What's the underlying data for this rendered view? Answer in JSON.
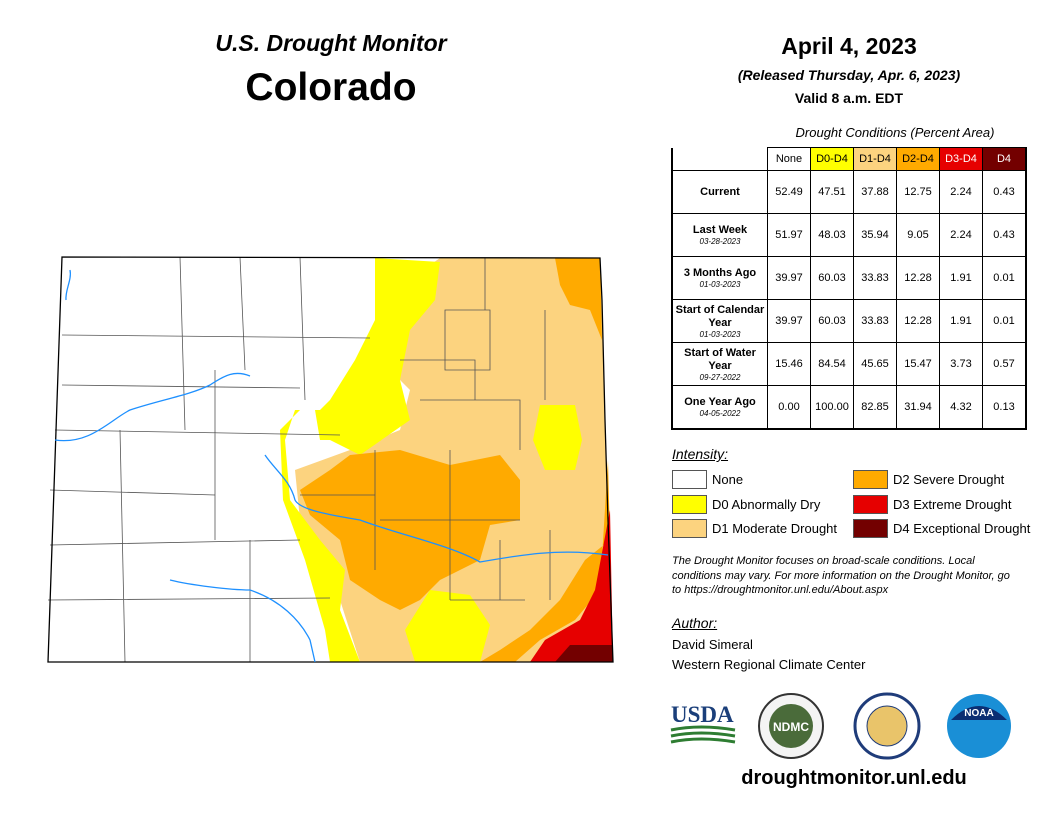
{
  "header": {
    "title": "U.S. Drought Monitor",
    "state": "Colorado",
    "date": "April 4, 2023",
    "released": "(Released Thursday, Apr. 6, 2023)",
    "valid": "Valid 8 a.m. EDT"
  },
  "table": {
    "caption": "Drought Conditions (Percent Area)",
    "columns": [
      {
        "label": "None",
        "color": "#ffffff",
        "text_color": "#000000"
      },
      {
        "label": "D0-D4",
        "color": "#ffff00",
        "text_color": "#000000"
      },
      {
        "label": "D1-D4",
        "color": "#fcd37f",
        "text_color": "#000000"
      },
      {
        "label": "D2-D4",
        "color": "#ffaa00",
        "text_color": "#000000"
      },
      {
        "label": "D3-D4",
        "color": "#e60000",
        "text_color": "#ffffff"
      },
      {
        "label": "D4",
        "color": "#730000",
        "text_color": "#ffffff"
      }
    ],
    "rows": [
      {
        "label": "Current",
        "values": [
          "52.49",
          "47.51",
          "37.88",
          "12.75",
          "2.24",
          "0.43"
        ]
      },
      {
        "label": "Last Week",
        "date": "03-28-2023",
        "values": [
          "51.97",
          "48.03",
          "35.94",
          "9.05",
          "2.24",
          "0.43"
        ]
      },
      {
        "label": "3 Months Ago",
        "date": "01-03-2023",
        "values": [
          "39.97",
          "60.03",
          "33.83",
          "12.28",
          "1.91",
          "0.01"
        ]
      },
      {
        "label": "Start of Calendar Year",
        "date": "01-03-2023",
        "values": [
          "39.97",
          "60.03",
          "33.83",
          "12.28",
          "1.91",
          "0.01"
        ]
      },
      {
        "label": "Start of Water Year",
        "date": "09-27-2022",
        "values": [
          "15.46",
          "84.54",
          "45.65",
          "15.47",
          "3.73",
          "0.57"
        ]
      },
      {
        "label": "One Year Ago",
        "date": "04-05-2022",
        "values": [
          "0.00",
          "100.00",
          "82.85",
          "31.94",
          "4.32",
          "0.13"
        ]
      }
    ]
  },
  "legend": {
    "title": "Intensity:",
    "items": [
      {
        "label": "None",
        "color": "#ffffff"
      },
      {
        "label": "D0 Abnormally Dry",
        "color": "#ffff00"
      },
      {
        "label": "D1 Moderate Drought",
        "color": "#fcd37f"
      },
      {
        "label": "D2 Severe Drought",
        "color": "#ffaa00"
      },
      {
        "label": "D3 Extreme Drought",
        "color": "#e60000"
      },
      {
        "label": "D4 Exceptional Drought",
        "color": "#730000"
      }
    ]
  },
  "note": "The Drought Monitor focuses on broad-scale conditions. Local conditions may vary. For more information on the Drought Monitor, go to https://droughtmonitor.unl.edu/About.aspx",
  "author": {
    "heading": "Author:",
    "name": "David Simeral",
    "organization": "Western Regional Climate Center"
  },
  "logos": [
    "USDA",
    "NDMC",
    "NOAA"
  ],
  "url": "droughtmonitor.unl.edu"
}
